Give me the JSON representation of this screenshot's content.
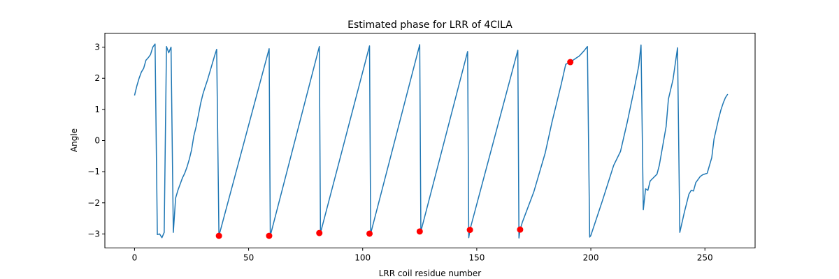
{
  "chart_data": {
    "type": "line",
    "title": "Estimated phase for LRR of 4CILA",
    "xlabel": "LRR coil residue number",
    "ylabel": "Angle",
    "xlim": [
      -13,
      272
    ],
    "ylim": [
      -3.45,
      3.45
    ],
    "xticks": [
      0,
      50,
      100,
      150,
      200,
      250
    ],
    "yticks": [
      -3,
      -2,
      -1,
      0,
      1,
      2,
      3
    ],
    "grid": false,
    "series": [
      {
        "color": "#1f77b4",
        "points": [
          [
            0,
            1.45
          ],
          [
            1,
            1.75
          ],
          [
            2,
            2.0
          ],
          [
            3,
            2.2
          ],
          [
            4,
            2.32
          ],
          [
            5,
            2.58
          ],
          [
            6,
            2.66
          ],
          [
            7,
            2.76
          ],
          [
            8,
            3.0
          ],
          [
            9,
            3.1
          ],
          [
            10,
            -3.02
          ],
          [
            11,
            -3.0
          ],
          [
            12,
            -3.12
          ],
          [
            13,
            -2.95
          ],
          [
            14,
            3.02
          ],
          [
            15,
            2.82
          ],
          [
            16,
            3.0
          ],
          [
            17,
            -2.95
          ],
          [
            18,
            -1.85
          ],
          [
            19,
            -1.6
          ],
          [
            20,
            -1.4
          ],
          [
            21,
            -1.2
          ],
          [
            22,
            -1.05
          ],
          [
            23,
            -0.85
          ],
          [
            24,
            -0.6
          ],
          [
            25,
            -0.3
          ],
          [
            26,
            0.15
          ],
          [
            27,
            0.45
          ],
          [
            28,
            0.82
          ],
          [
            29,
            1.2
          ],
          [
            30,
            1.5
          ],
          [
            31,
            1.73
          ],
          [
            32,
            1.95
          ],
          [
            33,
            2.2
          ],
          [
            34,
            2.45
          ],
          [
            35,
            2.7
          ],
          [
            36,
            2.93
          ],
          [
            37,
            -3.06
          ],
          [
            59,
            2.95
          ],
          [
            59.5,
            -3.06
          ],
          [
            81,
            3.02
          ],
          [
            81.5,
            -2.97
          ],
          [
            103,
            3.04
          ],
          [
            103.5,
            -2.99
          ],
          [
            125,
            3.08
          ],
          [
            125.5,
            -2.92
          ],
          [
            146,
            2.86
          ],
          [
            146.5,
            -3.12
          ],
          [
            147,
            -2.87
          ],
          [
            168,
            2.9
          ],
          [
            168.5,
            -3.13
          ],
          [
            169,
            -2.86
          ],
          [
            170,
            -2.62
          ],
          [
            175,
            -1.65
          ],
          [
            180,
            -0.4
          ],
          [
            183,
            0.6
          ],
          [
            187,
            1.8
          ],
          [
            189,
            2.45
          ],
          [
            191,
            2.52
          ],
          [
            193,
            2.62
          ],
          [
            195,
            2.72
          ],
          [
            197,
            2.88
          ],
          [
            198.5,
            3.02
          ],
          [
            199.5,
            -3.1
          ],
          [
            200,
            -3.05
          ],
          [
            205,
            -1.95
          ],
          [
            210,
            -0.8
          ],
          [
            213,
            -0.35
          ],
          [
            216,
            0.6
          ],
          [
            219,
            1.65
          ],
          [
            221,
            2.4
          ],
          [
            222,
            3.07
          ],
          [
            223,
            -2.22
          ],
          [
            224,
            -1.55
          ],
          [
            225,
            -1.6
          ],
          [
            226,
            -1.3
          ],
          [
            229,
            -1.08
          ],
          [
            230,
            -0.8
          ],
          [
            233,
            0.45
          ],
          [
            234,
            1.33
          ],
          [
            236,
            1.95
          ],
          [
            238,
            2.98
          ],
          [
            239,
            -2.95
          ],
          [
            241,
            -2.3
          ],
          [
            243,
            -1.72
          ],
          [
            244,
            -1.6
          ],
          [
            245,
            -1.62
          ],
          [
            246,
            -1.35
          ],
          [
            248,
            -1.15
          ],
          [
            249,
            -1.1
          ],
          [
            251,
            -1.05
          ],
          [
            253,
            -0.55
          ],
          [
            254,
            0.05
          ],
          [
            256,
            0.7
          ],
          [
            257,
            0.98
          ],
          [
            258,
            1.2
          ],
          [
            259,
            1.38
          ],
          [
            260,
            1.49
          ]
        ]
      }
    ],
    "markers": {
      "color": "#ff0000",
      "points": [
        [
          37,
          -3.06
        ],
        [
          59,
          -3.06
        ],
        [
          81,
          -2.97
        ],
        [
          103,
          -2.99
        ],
        [
          125,
          -2.92
        ],
        [
          147,
          -2.87
        ],
        [
          169,
          -2.86
        ],
        [
          191,
          2.52
        ]
      ]
    }
  }
}
